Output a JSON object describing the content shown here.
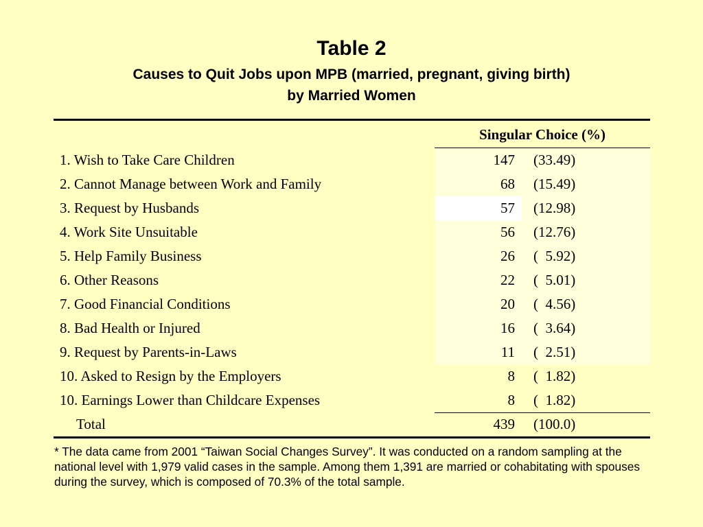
{
  "title": "Table 2",
  "subtitle_line1": "Causes to Quit Jobs upon MPB (married, pregnant, giving birth)",
  "subtitle_line2": "by Married Women",
  "table": {
    "column_header": "Singular Choice (%)",
    "rows": [
      {
        "cause": "1. Wish to Take Care Children",
        "count": "147",
        "pct": "(33.49)"
      },
      {
        "cause": "2. Cannot Manage between Work and Family",
        "count": "68",
        "pct": "(15.49)"
      },
      {
        "cause": "3. Request by Husbands",
        "count": "57",
        "pct": "(12.98)"
      },
      {
        "cause": "4. Work Site Unsuitable",
        "count": "56",
        "pct": "(12.76)"
      },
      {
        "cause": "5. Help Family Business",
        "count": "26",
        "pct": "(  5.92)"
      },
      {
        "cause": "6. Other Reasons",
        "count": "22",
        "pct": "(  5.01)"
      },
      {
        "cause": "7. Good Financial Conditions",
        "count": "20",
        "pct": "(  4.56)"
      },
      {
        "cause": "8. Bad Health or Injured",
        "count": "16",
        "pct": "(  3.64)"
      },
      {
        "cause": "9. Request by Parents-in-Laws",
        "count": "11",
        "pct": "(  2.51)"
      },
      {
        "cause": "10. Asked to Resign by the Employers",
        "count": "8",
        "pct": "(  1.82)"
      },
      {
        "cause": "10. Earnings Lower than Childcare Expenses",
        "count": "8",
        "pct": "(  1.82)"
      }
    ],
    "total": {
      "label": "Total",
      "count": "439",
      "pct": "(100.0)"
    }
  },
  "footnote": "* The data came from 2001 “Taiwan Social Changes Survey”. It was conducted on a random sampling at the national level with 1,979 valid cases in the sample. Among them 1,391 are married or cohabitating with spouses during the survey, which is composed of 70.3% of the total sample."
}
